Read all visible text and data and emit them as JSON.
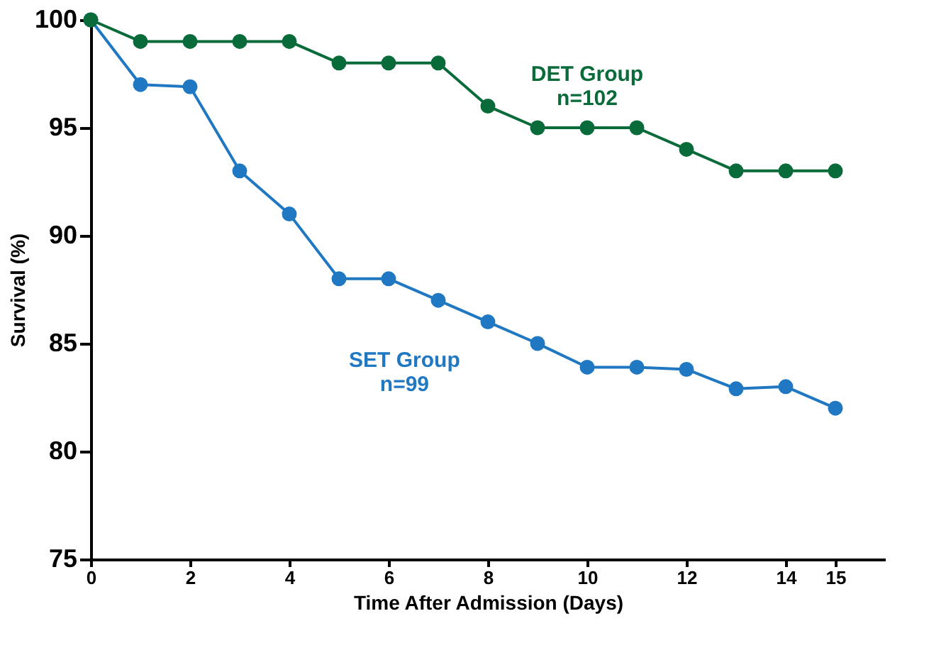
{
  "chart_data": {
    "type": "line",
    "xlabel": "Time After Admission (Days)",
    "ylabel": "Survival (%)",
    "x": [
      0,
      1,
      2,
      3,
      4,
      5,
      6,
      7,
      8,
      9,
      10,
      11,
      12,
      13,
      14,
      15
    ],
    "series": [
      {
        "name": "DET Group\nn=102",
        "color": "#0a6b3a",
        "values": [
          100,
          99,
          99,
          99,
          99,
          98,
          98,
          98,
          96,
          95,
          95,
          95,
          94,
          93,
          93,
          93
        ]
      },
      {
        "name": "SET Group\nn=99",
        "color": "#1f78c1",
        "values": [
          100,
          97,
          96.9,
          93,
          91,
          88,
          88,
          87,
          86,
          85,
          83.9,
          83.9,
          83.8,
          82.9,
          83,
          82
        ]
      }
    ],
    "xlim": [
      0,
      16
    ],
    "xticks": [
      0,
      2,
      4,
      6,
      8,
      10,
      12,
      14,
      15
    ],
    "ylim": [
      75,
      100
    ],
    "yticks": [
      75,
      80,
      85,
      90,
      95,
      100
    ],
    "grid": false,
    "marker": "circle",
    "line_style": "solid"
  }
}
